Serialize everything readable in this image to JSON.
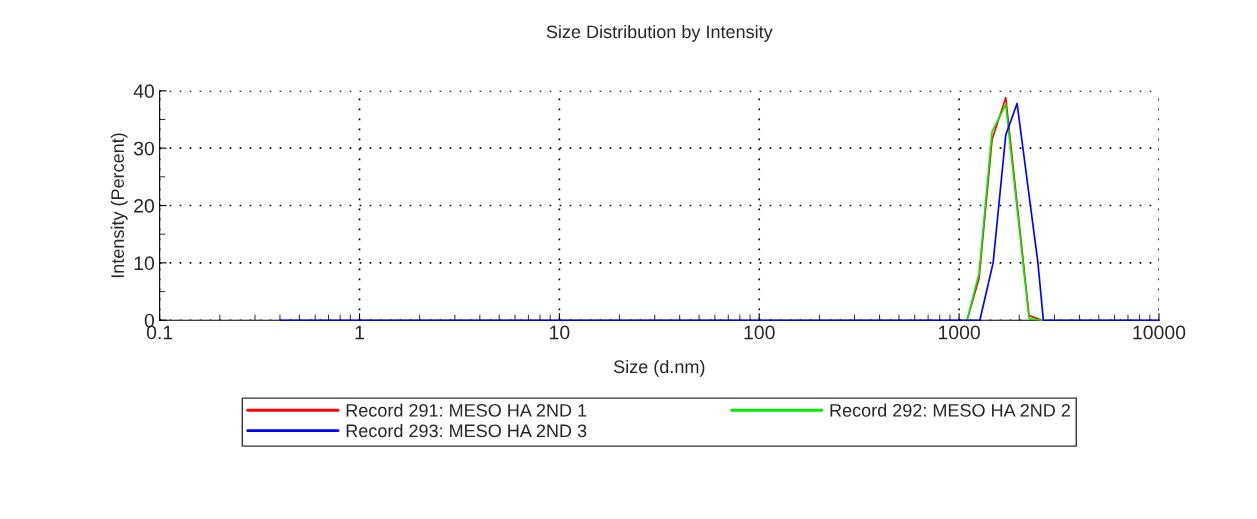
{
  "chart_data": {
    "type": "line",
    "title": "Size Distribution by Intensity",
    "xlabel": "Size (d.nm)",
    "ylabel": "Intensity (Percent)",
    "log": "x",
    "xlim": [
      0.1,
      10000
    ],
    "xticks": [
      0.1,
      1,
      10,
      100,
      1000,
      10000
    ],
    "ylim": [
      0,
      40
    ],
    "yticks": [
      0,
      10,
      20,
      30,
      40
    ],
    "grid": true,
    "legend": "bottom",
    "marker": "none",
    "line_style": "solid",
    "series": [
      {
        "name": "Record 291: MESO HA 2ND 1",
        "color": "#ff0000",
        "x": [
          1096,
          1259,
          1462,
          1712,
          2239,
          2600
        ],
        "values": [
          0,
          7.3,
          31.5,
          38.8,
          0.8,
          0
        ]
      },
      {
        "name": "Record 292: MESO HA 2ND 2",
        "color": "#00ee00",
        "x": [
          1096,
          1259,
          1462,
          1712,
          2239,
          2600
        ],
        "values": [
          0,
          8.2,
          32.9,
          37.6,
          0.3,
          0
        ]
      },
      {
        "name": "Record 293: MESO HA 2ND 3",
        "color": "#0000ff",
        "x": [
          0.4,
          1270,
          1480,
          1712,
          1950,
          2480,
          2640,
          10000
        ],
        "values": [
          0,
          0,
          10.0,
          32.3,
          37.8,
          10.0,
          0,
          0
        ]
      }
    ]
  }
}
